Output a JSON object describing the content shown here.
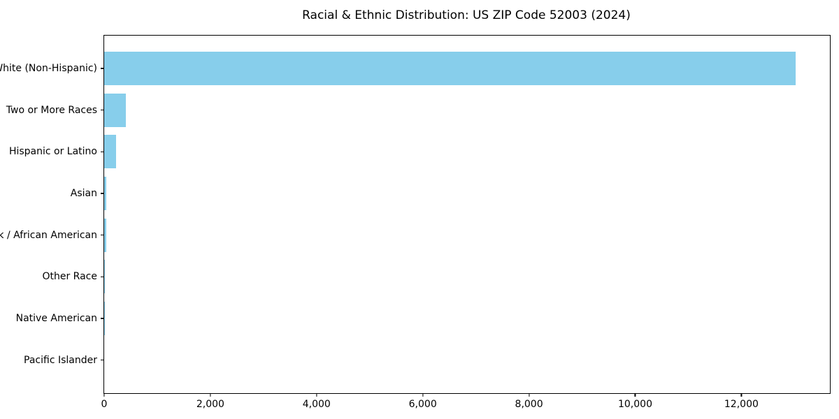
{
  "chart_data": {
    "type": "bar",
    "orientation": "horizontal",
    "title": "Racial & Ethnic Distribution: US ZIP Code 52003 (2024)",
    "categories": [
      "White (Non-Hispanic)",
      "Two or More Races",
      "Hispanic or Latino",
      "Asian",
      "Black / African American",
      "Other Race",
      "Native American",
      "Pacific Islander"
    ],
    "values": [
      13016,
      413,
      224,
      40,
      45,
      13,
      6,
      1
    ],
    "title_color": "#000000",
    "bar_color": "#87CEEB",
    "frame_color": "#000000",
    "background": "#FFFFFF",
    "xlabel": "",
    "ylabel": "",
    "xlim": [
      0,
      13667
    ],
    "xticks": [
      0,
      2000,
      4000,
      6000,
      8000,
      10000,
      12000
    ],
    "xtick_labels": [
      "0",
      "2,000",
      "4,000",
      "6,000",
      "8,000",
      "10,000",
      "12,000"
    ],
    "grid": false,
    "legend": false
  }
}
